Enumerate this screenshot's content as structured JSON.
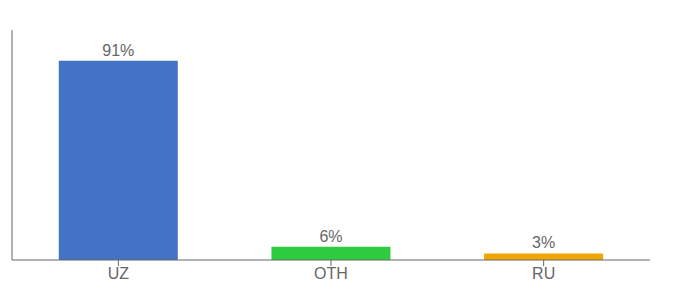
{
  "chart_data": {
    "type": "bar",
    "categories": [
      "UZ",
      "OTH",
      "RU"
    ],
    "values": [
      91,
      6,
      3
    ],
    "value_labels": [
      "91%",
      "6%",
      "3%"
    ],
    "colors": [
      "#4472c4",
      "#2ecc40",
      "#f0a500"
    ],
    "ylim": [
      0,
      105
    ],
    "grid": false,
    "data_labels": true,
    "tick_labels": "x"
  }
}
